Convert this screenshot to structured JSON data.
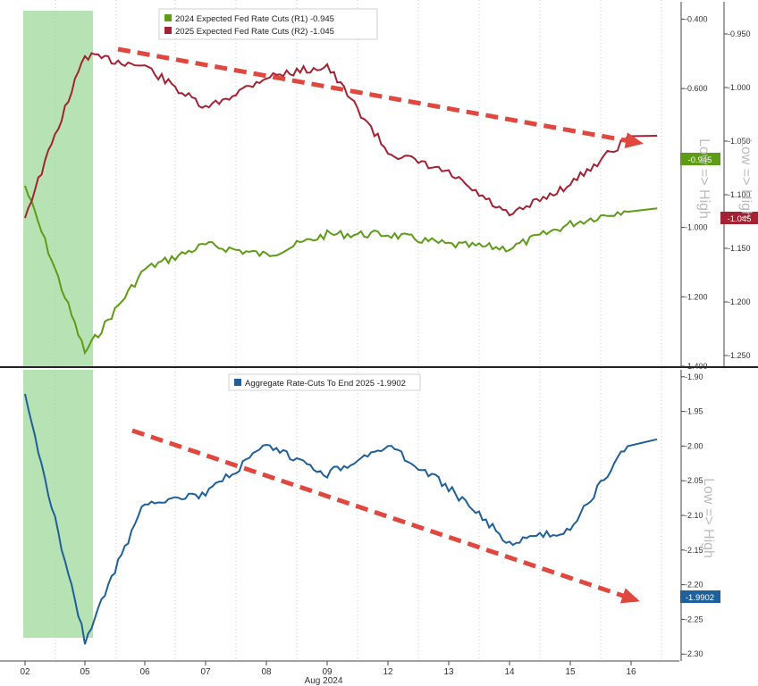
{
  "x_labels": [
    "02",
    "05",
    "06",
    "07",
    "08",
    "09",
    "12",
    "13",
    "14",
    "15",
    "16"
  ],
  "x_caption": "Aug 2024",
  "side_caption": "Low => High",
  "colors": {
    "green": "#5e9b16",
    "red": "#a32233",
    "blue": "#1f5f9a",
    "highlight": "#9fd89a",
    "arrow": "#e0473f",
    "grid": "#c8c8c8"
  },
  "chart_data": [
    {
      "type": "line",
      "legend_position": "top-left",
      "grid": true,
      "x": [
        "02",
        "05",
        "06",
        "07",
        "08",
        "09",
        "12",
        "13",
        "14",
        "15",
        "16"
      ],
      "series": [
        {
          "name": "2024 Expected Fed Rate Cuts (R1)",
          "legend": "2024 Expected Fed Rate Cuts (R1) -0.945",
          "color": "#5e9b16",
          "axis": "R1",
          "last_value_label": "-0.945",
          "values": [
            -0.88,
            -1.36,
            -1.12,
            -1.05,
            -1.08,
            -1.02,
            -1.02,
            -1.05,
            -1.06,
            -0.99,
            -0.945
          ]
        },
        {
          "name": "2025 Expected Fed Rate Cuts (R2)",
          "legend": "2025 Expected Fed Rate Cuts (R2) -1.045",
          "color": "#a32233",
          "axis": "R2",
          "last_value_label": "-1.045",
          "values": [
            -1.12,
            -0.97,
            -0.98,
            -1.02,
            -0.99,
            -0.98,
            -1.06,
            -1.08,
            -1.12,
            -1.09,
            -1.045
          ]
        }
      ],
      "axes": {
        "R1": {
          "ylim": [
            -0.35,
            -1.4
          ],
          "ticks": [
            "-1.400",
            "-1.200",
            "-1.000",
            "-0.800",
            "-0.600",
            "-0.400"
          ]
        },
        "R2": {
          "ylim": [
            -0.92,
            -1.26
          ],
          "ticks": [
            "-1.250",
            "-1.200",
            "-1.150",
            "-1.100",
            "-1.050",
            "-1.000",
            "-0.950"
          ]
        }
      },
      "annotations": [
        "shaded period 02–05",
        "dashed arrow downtrend",
        "Low => High"
      ]
    },
    {
      "type": "line",
      "legend_position": "top-left",
      "grid": true,
      "x": [
        "02",
        "05",
        "06",
        "07",
        "08",
        "09",
        "12",
        "13",
        "14",
        "15",
        "16"
      ],
      "series": [
        {
          "name": "Aggregate Rate-Cuts To End 2025",
          "legend": "Aggregate Rate-Cuts To End 2025 -1.9902",
          "color": "#1f5f9a",
          "last_value_label": "-1.9902",
          "values": [
            -1.93,
            -2.28,
            -2.08,
            -2.07,
            -2.0,
            -2.04,
            -2.0,
            -2.06,
            -2.14,
            -2.12,
            -1.9902
          ]
        }
      ],
      "axes": {
        "R": {
          "ylim": [
            -1.89,
            -2.31
          ],
          "ticks": [
            "-2.30",
            "-2.25",
            "-2.20",
            "-2.15",
            "-2.10",
            "-2.05",
            "-2.00",
            "-1.95",
            "-1.90"
          ]
        }
      },
      "annotations": [
        "shaded period 02–05",
        "dashed arrow downtrend",
        "Low => High"
      ]
    }
  ]
}
